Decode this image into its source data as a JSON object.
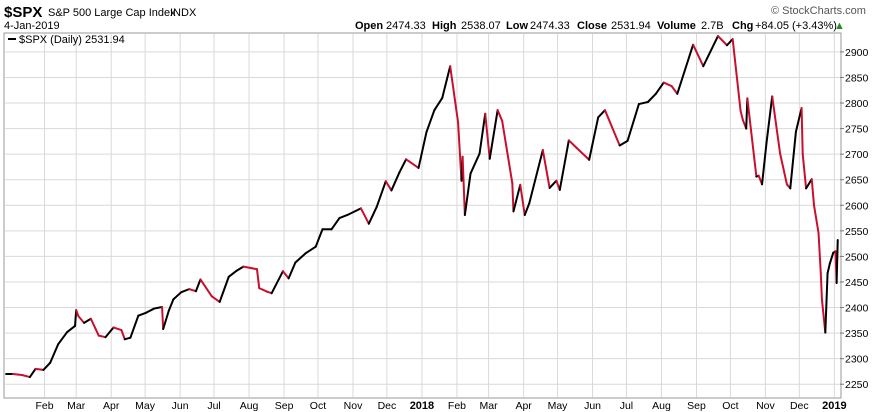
{
  "header": {
    "symbol": "$SPX",
    "name": "S&P 500 Large Cap Index",
    "exchange": "INDX",
    "date": "4-Jan-2019",
    "open_label": "Open",
    "open": "2474.33",
    "high_label": "High",
    "high": "2538.07",
    "low_label": "Low",
    "low": "2474.33",
    "close_label": "Close",
    "close": "2531.94",
    "volume_label": "Volume",
    "volume": "2.7B",
    "chg_label": "Chg",
    "chg": "+84.05 (+3.43%)",
    "chg_arrow": "▲",
    "watermark": "© StockCharts.com"
  },
  "legend": {
    "label": "$SPX (Daily) 2531.94"
  },
  "colors": {
    "up": "#000000",
    "down": "#c8102e",
    "grid": "#d9d9d9",
    "border": "#999999",
    "arrow": "#2a8a2a"
  },
  "chart_data": {
    "type": "line",
    "series_name": "$SPX (Daily)",
    "y_ticks": [
      2250,
      2300,
      2350,
      2400,
      2450,
      2500,
      2550,
      2600,
      2650,
      2700,
      2750,
      2800,
      2850,
      2900
    ],
    "ylim": [
      2225,
      2935
    ],
    "xlim": [
      "2016-12-28",
      "2019-01-06"
    ],
    "x_ticks": [
      {
        "label": "Feb",
        "date": "2017-02-01",
        "bold": false
      },
      {
        "label": "Mar",
        "date": "2017-03-01",
        "bold": false
      },
      {
        "label": "Apr",
        "date": "2017-04-01",
        "bold": false
      },
      {
        "label": "May",
        "date": "2017-05-01",
        "bold": false
      },
      {
        "label": "Jun",
        "date": "2017-06-01",
        "bold": false
      },
      {
        "label": "Jul",
        "date": "2017-07-01",
        "bold": false
      },
      {
        "label": "Aug",
        "date": "2017-08-01",
        "bold": false
      },
      {
        "label": "Sep",
        "date": "2017-09-01",
        "bold": false
      },
      {
        "label": "Oct",
        "date": "2017-10-01",
        "bold": false
      },
      {
        "label": "Nov",
        "date": "2017-11-01",
        "bold": false
      },
      {
        "label": "Dec",
        "date": "2017-12-01",
        "bold": false
      },
      {
        "label": "2018",
        "date": "2018-01-01",
        "bold": true
      },
      {
        "label": "Feb",
        "date": "2018-02-01",
        "bold": false
      },
      {
        "label": "Mar",
        "date": "2018-03-01",
        "bold": false
      },
      {
        "label": "Apr",
        "date": "2018-04-01",
        "bold": false
      },
      {
        "label": "May",
        "date": "2018-05-01",
        "bold": false
      },
      {
        "label": "Jun",
        "date": "2018-06-01",
        "bold": false
      },
      {
        "label": "Jul",
        "date": "2018-07-01",
        "bold": false
      },
      {
        "label": "Aug",
        "date": "2018-08-01",
        "bold": false
      },
      {
        "label": "Sep",
        "date": "2018-09-01",
        "bold": false
      },
      {
        "label": "Oct",
        "date": "2018-10-01",
        "bold": false
      },
      {
        "label": "Nov",
        "date": "2018-11-01",
        "bold": false
      },
      {
        "label": "Dec",
        "date": "2018-12-01",
        "bold": false
      },
      {
        "label": "2019",
        "date": "2019-01-01",
        "bold": true
      }
    ],
    "points": [
      [
        "2016-12-29",
        2270
      ],
      [
        "2017-01-04",
        2270
      ],
      [
        "2017-01-12",
        2268
      ],
      [
        "2017-01-19",
        2264
      ],
      [
        "2017-01-24",
        2280
      ],
      [
        "2017-01-31",
        2278
      ],
      [
        "2017-02-06",
        2292
      ],
      [
        "2017-02-13",
        2328
      ],
      [
        "2017-02-21",
        2352
      ],
      [
        "2017-02-28",
        2364
      ],
      [
        "2017-03-01",
        2395
      ],
      [
        "2017-03-03",
        2383
      ],
      [
        "2017-03-08",
        2370
      ],
      [
        "2017-03-14",
        2378
      ],
      [
        "2017-03-21",
        2345
      ],
      [
        "2017-03-27",
        2342
      ],
      [
        "2017-04-03",
        2361
      ],
      [
        "2017-04-10",
        2356
      ],
      [
        "2017-04-13",
        2338
      ],
      [
        "2017-04-18",
        2341
      ],
      [
        "2017-04-25",
        2384
      ],
      [
        "2017-05-02",
        2390
      ],
      [
        "2017-05-09",
        2398
      ],
      [
        "2017-05-16",
        2401
      ],
      [
        "2017-05-17",
        2358
      ],
      [
        "2017-05-22",
        2394
      ],
      [
        "2017-05-26",
        2416
      ],
      [
        "2017-06-02",
        2430
      ],
      [
        "2017-06-09",
        2436
      ],
      [
        "2017-06-15",
        2432
      ],
      [
        "2017-06-19",
        2455
      ],
      [
        "2017-06-29",
        2422
      ],
      [
        "2017-07-06",
        2411
      ],
      [
        "2017-07-14",
        2460
      ],
      [
        "2017-07-21",
        2472
      ],
      [
        "2017-07-27",
        2480
      ],
      [
        "2017-08-08",
        2475
      ],
      [
        "2017-08-10",
        2438
      ],
      [
        "2017-08-17",
        2431
      ],
      [
        "2017-08-21",
        2428
      ],
      [
        "2017-08-31",
        2471
      ],
      [
        "2017-09-05",
        2457
      ],
      [
        "2017-09-11",
        2488
      ],
      [
        "2017-09-20",
        2506
      ],
      [
        "2017-09-29",
        2519
      ],
      [
        "2017-10-05",
        2553
      ],
      [
        "2017-10-13",
        2553
      ],
      [
        "2017-10-20",
        2575
      ],
      [
        "2017-10-27",
        2581
      ],
      [
        "2017-11-08",
        2594
      ],
      [
        "2017-11-15",
        2564
      ],
      [
        "2017-11-22",
        2597
      ],
      [
        "2017-11-30",
        2647
      ],
      [
        "2017-12-05",
        2629
      ],
      [
        "2017-12-12",
        2664
      ],
      [
        "2017-12-18",
        2690
      ],
      [
        "2017-12-29",
        2673
      ],
      [
        "2018-01-05",
        2743
      ],
      [
        "2018-01-12",
        2786
      ],
      [
        "2018-01-19",
        2810
      ],
      [
        "2018-01-26",
        2872
      ],
      [
        "2018-02-02",
        2762
      ],
      [
        "2018-02-05",
        2648
      ],
      [
        "2018-02-06",
        2695
      ],
      [
        "2018-02-08",
        2581
      ],
      [
        "2018-02-13",
        2662
      ],
      [
        "2018-02-21",
        2701
      ],
      [
        "2018-02-26",
        2779
      ],
      [
        "2018-03-02",
        2691
      ],
      [
        "2018-03-09",
        2786
      ],
      [
        "2018-03-13",
        2765
      ],
      [
        "2018-03-22",
        2643
      ],
      [
        "2018-03-23",
        2588
      ],
      [
        "2018-03-29",
        2640
      ],
      [
        "2018-04-02",
        2581
      ],
      [
        "2018-04-06",
        2604
      ],
      [
        "2018-04-18",
        2708
      ],
      [
        "2018-04-24",
        2634
      ],
      [
        "2018-04-30",
        2648
      ],
      [
        "2018-05-03",
        2630
      ],
      [
        "2018-05-11",
        2727
      ],
      [
        "2018-05-18",
        2712
      ],
      [
        "2018-05-29",
        2689
      ],
      [
        "2018-06-06",
        2772
      ],
      [
        "2018-06-12",
        2786
      ],
      [
        "2018-06-25",
        2717
      ],
      [
        "2018-07-02",
        2726
      ],
      [
        "2018-07-12",
        2798
      ],
      [
        "2018-07-20",
        2802
      ],
      [
        "2018-07-27",
        2818
      ],
      [
        "2018-08-03",
        2840
      ],
      [
        "2018-08-10",
        2833
      ],
      [
        "2018-08-15",
        2818
      ],
      [
        "2018-08-29",
        2914
      ],
      [
        "2018-09-07",
        2872
      ],
      [
        "2018-09-20",
        2931
      ],
      [
        "2018-09-28",
        2913
      ],
      [
        "2018-10-03",
        2925
      ],
      [
        "2018-10-10",
        2785
      ],
      [
        "2018-10-12",
        2767
      ],
      [
        "2018-10-15",
        2750
      ],
      [
        "2018-10-16",
        2809
      ],
      [
        "2018-10-24",
        2656
      ],
      [
        "2018-10-26",
        2658
      ],
      [
        "2018-10-29",
        2641
      ],
      [
        "2018-11-02",
        2723
      ],
      [
        "2018-11-07",
        2813
      ],
      [
        "2018-11-09",
        2781
      ],
      [
        "2018-11-14",
        2701
      ],
      [
        "2018-11-20",
        2641
      ],
      [
        "2018-11-23",
        2633
      ],
      [
        "2018-11-28",
        2744
      ],
      [
        "2018-12-03",
        2790
      ],
      [
        "2018-12-04",
        2700
      ],
      [
        "2018-12-07",
        2633
      ],
      [
        "2018-12-12",
        2651
      ],
      [
        "2018-12-14",
        2600
      ],
      [
        "2018-12-18",
        2546
      ],
      [
        "2018-12-20",
        2467
      ],
      [
        "2018-12-21",
        2416
      ],
      [
        "2018-12-24",
        2351
      ],
      [
        "2018-12-26",
        2467
      ],
      [
        "2018-12-28",
        2486
      ],
      [
        "2018-12-31",
        2507
      ],
      [
        "2019-01-02",
        2510
      ],
      [
        "2019-01-03",
        2448
      ],
      [
        "2019-01-04",
        2532
      ]
    ]
  }
}
